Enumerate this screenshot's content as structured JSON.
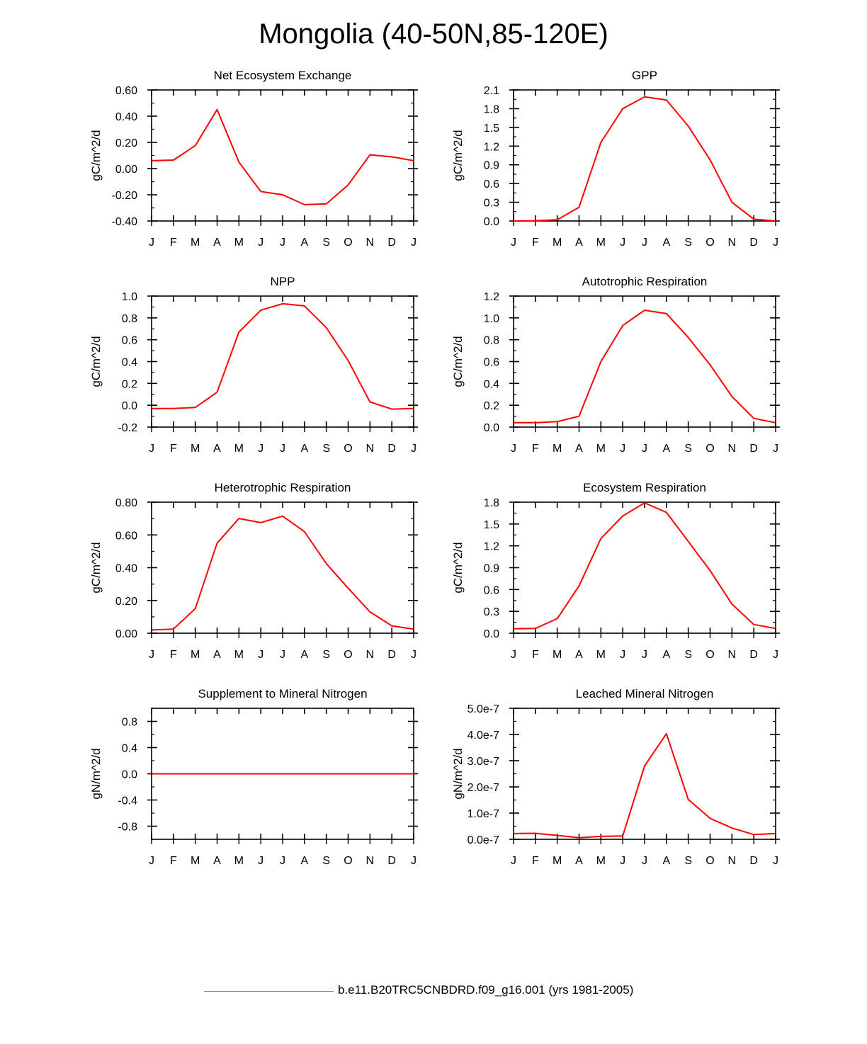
{
  "figure_title": "Mongolia (40-50N,85-120E)",
  "legend": {
    "label": "b.e11.B20TRC5CNBDRD.f09_g16.001 (yrs 1981-2005)",
    "color": "#e4314f"
  },
  "line_color": "#ff0000",
  "chart_data": [
    {
      "type": "line",
      "title": "Net Ecosystem Exchange",
      "ylabel": "gC/m^2/d",
      "categories": [
        "J",
        "F",
        "M",
        "A",
        "M",
        "J",
        "J",
        "A",
        "S",
        "O",
        "N",
        "D",
        "J"
      ],
      "ylim": [
        -0.4,
        0.6
      ],
      "yticks": [
        -0.4,
        -0.2,
        0.0,
        0.2,
        0.4,
        0.6
      ],
      "yticklabels": [
        "-0.40",
        "-0.20",
        "0.00",
        "0.20",
        "0.40",
        "0.60"
      ],
      "yminor": [
        -0.3,
        -0.1,
        0.1,
        0.3,
        0.5
      ],
      "values": [
        0.06,
        0.065,
        0.175,
        0.45,
        0.05,
        -0.175,
        -0.2,
        -0.275,
        -0.27,
        -0.125,
        0.105,
        0.09,
        0.06
      ]
    },
    {
      "type": "line",
      "title": "GPP",
      "ylabel": "gC/m^2/d",
      "categories": [
        "J",
        "F",
        "M",
        "A",
        "M",
        "J",
        "J",
        "A",
        "S",
        "O",
        "N",
        "D",
        "J"
      ],
      "ylim": [
        0,
        2.1
      ],
      "yticks": [
        0,
        0.3,
        0.6,
        0.9,
        1.2,
        1.5,
        1.8,
        2.1
      ],
      "yticklabels": [
        "0.0",
        "0.3",
        "0.6",
        "0.9",
        "1.2",
        "1.5",
        "1.8",
        "2.1"
      ],
      "yminor": [
        0.15,
        0.45,
        0.75,
        1.05,
        1.35,
        1.65,
        1.95
      ],
      "values": [
        0.0,
        0.005,
        0.02,
        0.22,
        1.26,
        1.8,
        1.99,
        1.94,
        1.52,
        0.98,
        0.3,
        0.03,
        0.0
      ]
    },
    {
      "type": "line",
      "title": "NPP",
      "ylabel": "gC/m^2/d",
      "categories": [
        "J",
        "F",
        "M",
        "A",
        "M",
        "J",
        "J",
        "A",
        "S",
        "O",
        "N",
        "D",
        "J"
      ],
      "ylim": [
        -0.2,
        1.0
      ],
      "yticks": [
        -0.2,
        0.0,
        0.2,
        0.4,
        0.6,
        0.8,
        1.0
      ],
      "yticklabels": [
        "-0.2",
        "0.0",
        "0.2",
        "0.4",
        "0.6",
        "0.8",
        "1.0"
      ],
      "yminor": [
        -0.1,
        0.1,
        0.3,
        0.5,
        0.7,
        0.9
      ],
      "values": [
        -0.03,
        -0.03,
        -0.02,
        0.12,
        0.67,
        0.87,
        0.93,
        0.91,
        0.71,
        0.41,
        0.03,
        -0.035,
        -0.03
      ]
    },
    {
      "type": "line",
      "title": "Autotrophic Respiration",
      "ylabel": "gC/m^2/d",
      "categories": [
        "J",
        "F",
        "M",
        "A",
        "M",
        "J",
        "J",
        "A",
        "S",
        "O",
        "N",
        "D",
        "J"
      ],
      "ylim": [
        0,
        1.2
      ],
      "yticks": [
        0,
        0.2,
        0.4,
        0.6,
        0.8,
        1.0,
        1.2
      ],
      "yticklabels": [
        "0.0",
        "0.2",
        "0.4",
        "0.6",
        "0.8",
        "1.0",
        "1.2"
      ],
      "yminor": [
        0.1,
        0.3,
        0.5,
        0.7,
        0.9,
        1.1
      ],
      "values": [
        0.04,
        0.04,
        0.05,
        0.1,
        0.6,
        0.93,
        1.07,
        1.04,
        0.82,
        0.57,
        0.28,
        0.08,
        0.04
      ]
    },
    {
      "type": "line",
      "title": "Heterotrophic Respiration",
      "ylabel": "gC/m^2/d",
      "categories": [
        "J",
        "F",
        "M",
        "A",
        "M",
        "J",
        "J",
        "A",
        "S",
        "O",
        "N",
        "D",
        "J"
      ],
      "ylim": [
        0,
        0.8
      ],
      "yticks": [
        0,
        0.2,
        0.4,
        0.6,
        0.8
      ],
      "yticklabels": [
        "0.00",
        "0.20",
        "0.40",
        "0.60",
        "0.80"
      ],
      "yminor": [
        0.1,
        0.3,
        0.5,
        0.7
      ],
      "values": [
        0.02,
        0.025,
        0.15,
        0.55,
        0.7,
        0.675,
        0.715,
        0.62,
        0.425,
        0.275,
        0.13,
        0.045,
        0.025
      ]
    },
    {
      "type": "line",
      "title": "Ecosystem Respiration",
      "ylabel": "gC/m^2/d",
      "categories": [
        "J",
        "F",
        "M",
        "A",
        "M",
        "J",
        "J",
        "A",
        "S",
        "O",
        "N",
        "D",
        "J"
      ],
      "ylim": [
        0,
        1.8
      ],
      "yticks": [
        0,
        0.3,
        0.6,
        0.9,
        1.2,
        1.5,
        1.8
      ],
      "yticklabels": [
        "0.0",
        "0.3",
        "0.6",
        "0.9",
        "1.2",
        "1.5",
        "1.8"
      ],
      "yminor": [
        0.15,
        0.45,
        0.75,
        1.05,
        1.35,
        1.65
      ],
      "values": [
        0.06,
        0.065,
        0.2,
        0.65,
        1.3,
        1.61,
        1.79,
        1.66,
        1.26,
        0.86,
        0.4,
        0.12,
        0.065
      ]
    },
    {
      "type": "line",
      "title": "Supplement to Mineral Nitrogen",
      "ylabel": "gN/m^2/d",
      "categories": [
        "J",
        "F",
        "M",
        "A",
        "M",
        "J",
        "J",
        "A",
        "S",
        "O",
        "N",
        "D",
        "J"
      ],
      "ylim": [
        -1.0,
        1.0
      ],
      "yticks": [
        -0.8,
        -0.4,
        0.0,
        0.4,
        0.8
      ],
      "yticklabels": [
        "-0.8",
        "-0.4",
        "0.0",
        "0.4",
        "0.8"
      ],
      "yminor": [
        -1.0,
        -0.6,
        -0.2,
        0.2,
        0.6,
        1.0
      ],
      "values": [
        0,
        0,
        0,
        0,
        0,
        0,
        0,
        0,
        0,
        0,
        0,
        0,
        0
      ]
    },
    {
      "type": "line",
      "title": "Leached Mineral Nitrogen",
      "ylabel": "gN/m^2/d",
      "categories": [
        "J",
        "F",
        "M",
        "A",
        "M",
        "J",
        "J",
        "A",
        "S",
        "O",
        "N",
        "D",
        "J"
      ],
      "ylim": [
        0,
        5e-07
      ],
      "yticks": [
        0,
        1e-07,
        2e-07,
        3e-07,
        4e-07,
        5e-07
      ],
      "yticklabels": [
        "0.0e-7",
        "1.0e-7",
        "2.0e-7",
        "3.0e-7",
        "4.0e-7",
        "5.0e-7"
      ],
      "yminor": [
        5e-08,
        1.5e-07,
        2.5e-07,
        3.5e-07,
        4.5e-07
      ],
      "values": [
        2.2e-08,
        2.3e-08,
        1.5e-08,
        6e-09,
        1.1e-08,
        1.3e-08,
        2.8e-07,
        4.03e-07,
        1.52e-07,
        8e-08,
        4.3e-08,
        1.8e-08,
        2.2e-08
      ]
    }
  ]
}
